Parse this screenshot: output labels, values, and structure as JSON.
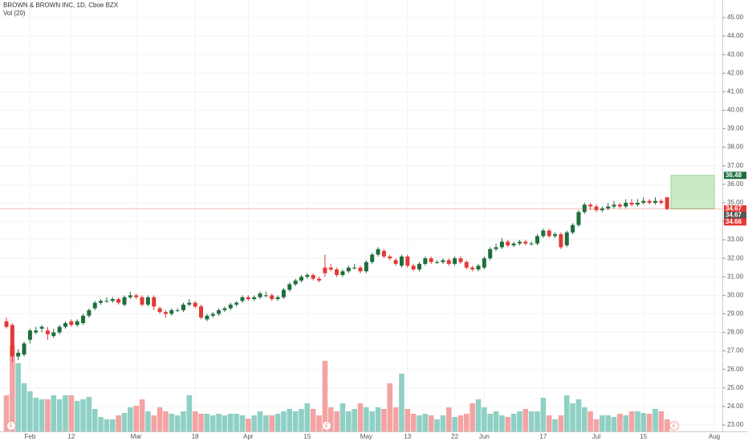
{
  "chart_data": {
    "type": "candlestick",
    "title": "BROWN & BROWN INC, 1D, Cboe BZX",
    "subtitle": "Vol (20)",
    "categories": [
      null,
      null,
      null,
      null,
      "Feb",
      null,
      null,
      null,
      null,
      null,
      null,
      "12",
      null,
      null,
      null,
      null,
      null,
      null,
      null,
      null,
      null,
      null,
      "Mar",
      null,
      null,
      null,
      null,
      null,
      null,
      null,
      null,
      null,
      "18",
      null,
      null,
      null,
      null,
      null,
      null,
      null,
      null,
      "Apr",
      null,
      null,
      null,
      null,
      null,
      null,
      null,
      null,
      null,
      "15",
      null,
      null,
      null,
      null,
      null,
      null,
      null,
      null,
      null,
      "May",
      null,
      null,
      null,
      null,
      null,
      null,
      "13",
      null,
      null,
      null,
      null,
      null,
      null,
      null,
      "22",
      null,
      null,
      null,
      null,
      "Jun",
      null,
      null,
      null,
      null,
      null,
      null,
      null,
      null,
      null,
      "17",
      null,
      null,
      null,
      null,
      null,
      null,
      null,
      null,
      "Jul",
      null,
      null,
      null,
      null,
      null,
      null,
      null,
      "15",
      null,
      null,
      null,
      null,
      null,
      null,
      null,
      null,
      null,
      null,
      null,
      "Aug"
    ],
    "open": [
      28.6,
      28.4,
      26.7,
      26.8,
      27.6,
      28.0,
      28.2,
      28.1,
      27.8,
      28.0,
      28.3,
      28.6,
      28.4,
      28.5,
      28.9,
      29.3,
      29.6,
      29.7,
      29.7,
      29.8,
      29.5,
      29.9,
      30.0,
      29.9,
      29.5,
      29.9,
      29.3,
      29.1,
      29.0,
      29.2,
      29.2,
      29.5,
      29.6,
      29.4,
      28.7,
      28.9,
      29.0,
      29.2,
      29.3,
      29.5,
      29.7,
      29.9,
      29.8,
      29.9,
      30.0,
      30.0,
      29.8,
      29.9,
      30.3,
      30.6,
      30.8,
      31.0,
      31.1,
      30.9,
      31.5,
      31.5,
      31.4,
      31.1,
      31.3,
      31.5,
      31.5,
      31.3,
      31.8,
      32.2,
      32.4,
      32.1,
      31.9,
      31.6,
      32.1,
      31.6,
      31.4,
      31.7,
      32.0,
      31.8,
      31.8,
      31.9,
      31.7,
      32.0,
      31.8,
      31.5,
      31.4,
      31.5,
      32.0,
      32.5,
      32.6,
      32.9,
      32.7,
      32.8,
      32.9,
      32.8,
      32.8,
      33.2,
      33.5,
      33.2,
      33.3,
      32.7,
      33.4,
      33.8,
      34.5,
      34.9,
      34.8,
      34.6,
      34.7,
      34.8,
      34.9,
      34.8,
      35.0,
      34.9,
      35.0,
      35.1,
      35.0,
      35.1,
      35.3,
      null,
      null,
      null,
      null,
      null,
      null,
      null,
      null
    ],
    "high": [
      28.8,
      28.5,
      27.1,
      27.5,
      28.2,
      28.3,
      28.4,
      28.3,
      28.2,
      28.4,
      28.6,
      28.7,
      28.7,
      29.0,
      29.3,
      29.7,
      29.8,
      29.9,
      29.9,
      29.9,
      30.0,
      30.2,
      30.1,
      30.0,
      30.0,
      30.0,
      29.4,
      29.2,
      29.3,
      29.3,
      29.6,
      29.8,
      29.7,
      29.5,
      29.0,
      29.1,
      29.3,
      29.4,
      29.6,
      29.7,
      30.0,
      30.0,
      30.0,
      30.2,
      30.2,
      30.1,
      30.0,
      30.4,
      30.7,
      30.9,
      31.1,
      31.2,
      31.2,
      31.0,
      32.2,
      31.7,
      31.5,
      31.4,
      31.6,
      31.7,
      31.6,
      31.9,
      32.3,
      32.6,
      32.5,
      32.2,
      32.0,
      32.2,
      32.2,
      31.7,
      31.8,
      32.1,
      32.1,
      31.9,
      32.0,
      32.0,
      32.1,
      32.1,
      31.9,
      31.6,
      31.7,
      32.1,
      32.6,
      32.8,
      33.1,
      33.0,
      32.9,
      33.0,
      33.0,
      32.9,
      33.3,
      33.6,
      33.6,
      33.4,
      33.4,
      33.5,
      33.9,
      34.6,
      35.0,
      35.0,
      34.9,
      34.8,
      35.0,
      35.1,
      35.0,
      35.2,
      35.2,
      35.2,
      35.3,
      35.2,
      35.3,
      35.2,
      35.3,
      null,
      null,
      null,
      null,
      null,
      null,
      null,
      null
    ],
    "low": [
      28.2,
      26.4,
      26.5,
      26.7,
      27.4,
      27.9,
      28.0,
      27.6,
      27.7,
      27.9,
      28.2,
      28.3,
      28.3,
      28.4,
      28.8,
      29.2,
      29.5,
      29.6,
      29.6,
      29.5,
      29.4,
      29.8,
      29.8,
      29.4,
      29.4,
      29.2,
      29.0,
      28.8,
      28.9,
      29.1,
      29.1,
      29.4,
      29.3,
      28.7,
      28.6,
      28.8,
      28.9,
      29.1,
      29.2,
      29.4,
      29.6,
      29.7,
      29.7,
      29.8,
      29.9,
      29.7,
      29.7,
      29.8,
      30.2,
      30.5,
      30.7,
      30.9,
      30.8,
      30.7,
      31.0,
      31.3,
      31.0,
      31.0,
      31.2,
      31.4,
      31.2,
      31.2,
      31.7,
      32.1,
      32.0,
      31.9,
      31.6,
      31.5,
      31.5,
      31.3,
      31.3,
      31.6,
      31.7,
      31.7,
      31.7,
      31.6,
      31.6,
      31.7,
      31.4,
      31.3,
      31.3,
      31.4,
      31.9,
      32.4,
      32.5,
      32.6,
      32.6,
      32.7,
      32.7,
      32.7,
      32.7,
      33.1,
      33.1,
      33.1,
      32.5,
      32.6,
      33.3,
      33.7,
      34.4,
      34.6,
      34.5,
      34.5,
      34.6,
      34.7,
      34.7,
      34.7,
      34.8,
      34.8,
      34.9,
      34.9,
      34.9,
      34.9,
      34.6,
      null,
      null,
      null,
      null,
      null,
      null,
      null,
      null
    ],
    "close": [
      28.3,
      26.7,
      26.9,
      27.4,
      28.1,
      28.1,
      28.3,
      27.9,
      28.0,
      28.3,
      28.5,
      28.4,
      28.6,
      28.9,
      29.2,
      29.6,
      29.7,
      29.7,
      29.8,
      29.6,
      29.9,
      30.0,
      29.9,
      29.5,
      29.9,
      29.4,
      29.1,
      29.0,
      29.2,
      29.2,
      29.5,
      29.6,
      29.4,
      28.8,
      28.9,
      29.0,
      29.2,
      29.3,
      29.5,
      29.6,
      29.9,
      29.8,
      29.9,
      30.1,
      30.0,
      29.8,
      29.9,
      30.3,
      30.6,
      30.8,
      31.0,
      31.1,
      30.9,
      30.8,
      31.2,
      31.4,
      31.1,
      31.3,
      31.5,
      31.5,
      31.3,
      31.8,
      32.2,
      32.5,
      32.1,
      32.0,
      31.7,
      32.1,
      31.6,
      31.4,
      31.7,
      32.0,
      31.8,
      31.8,
      31.9,
      31.7,
      32.0,
      31.8,
      31.5,
      31.4,
      31.6,
      32.0,
      32.5,
      32.6,
      32.9,
      32.7,
      32.8,
      32.9,
      32.8,
      32.8,
      33.2,
      33.5,
      33.2,
      33.3,
      32.6,
      33.4,
      33.8,
      34.5,
      34.9,
      34.8,
      34.6,
      34.7,
      34.8,
      34.9,
      34.8,
      35.0,
      34.9,
      35.0,
      35.1,
      35.0,
      35.1,
      35.0,
      34.67,
      null,
      null,
      null,
      null,
      null,
      null,
      null,
      null
    ],
    "volume": [
      45,
      107,
      85,
      60,
      50,
      42,
      40,
      40,
      45,
      40,
      45,
      45,
      38,
      40,
      43,
      28,
      18,
      15,
      15,
      20,
      23,
      30,
      32,
      40,
      25,
      20,
      30,
      25,
      22,
      20,
      25,
      45,
      25,
      22,
      22,
      20,
      22,
      20,
      22,
      22,
      20,
      16,
      20,
      25,
      20,
      20,
      22,
      25,
      28,
      25,
      28,
      35,
      28,
      20,
      88,
      30,
      25,
      35,
      25,
      28,
      35,
      30,
      25,
      30,
      28,
      60,
      30,
      72,
      28,
      22,
      20,
      22,
      20,
      15,
      20,
      30,
      18,
      20,
      22,
      35,
      40,
      30,
      22,
      25,
      20,
      18,
      22,
      25,
      28,
      25,
      25,
      42,
      20,
      15,
      20,
      45,
      35,
      40,
      30,
      25,
      15,
      20,
      20,
      18,
      22,
      20,
      25,
      25,
      23,
      22,
      28,
      25,
      15,
      null,
      null,
      null,
      null,
      null,
      null,
      null,
      null
    ],
    "up_color": "#1e6e3c",
    "down_color": "#e53935",
    "volume_up_color": "#8fd0c5",
    "volume_down_color": "#f4a3a3",
    "ylim": [
      23,
      45
    ],
    "yticks": [
      {
        "value": 23,
        "label": "23.00"
      },
      {
        "value": 24,
        "label": "24.00"
      },
      {
        "value": 25,
        "label": "25.00"
      },
      {
        "value": 26,
        "label": "26.00"
      },
      {
        "value": 27,
        "label": "27.00"
      },
      {
        "value": 28,
        "label": "28.00"
      },
      {
        "value": 29,
        "label": "29.00"
      },
      {
        "value": 30,
        "label": "30.00"
      },
      {
        "value": 31,
        "label": "31.00"
      },
      {
        "value": 32,
        "label": "32.00"
      },
      {
        "value": 33,
        "label": "33.00"
      },
      {
        "value": 34,
        "label": "34.00"
      },
      {
        "value": 35,
        "label": "35.00"
      },
      {
        "value": 36,
        "label": "36.00"
      },
      {
        "value": 37,
        "label": "37.00"
      },
      {
        "value": 38,
        "label": "38.00"
      },
      {
        "value": 39,
        "label": "39.00"
      },
      {
        "value": 40,
        "label": "40.00"
      },
      {
        "value": 41,
        "label": "41.00"
      },
      {
        "value": 42,
        "label": "42.00"
      },
      {
        "value": 43,
        "label": "43.00"
      },
      {
        "value": 44,
        "label": "44.00"
      },
      {
        "value": 45,
        "label": "45.00"
      }
    ],
    "grid": true,
    "target_zone": {
      "from": 34.67,
      "to": 36.48,
      "color": "#c8ebc4"
    },
    "price_labels": [
      {
        "value": 36.48,
        "color": "#1e6e3c"
      },
      {
        "value": 34.67,
        "color": "#e53935"
      },
      {
        "value": 34.67,
        "color": "#555555"
      },
      {
        "value": 34.66,
        "color": "#e53935"
      }
    ],
    "events": [
      "E",
      "E",
      "E"
    ]
  }
}
